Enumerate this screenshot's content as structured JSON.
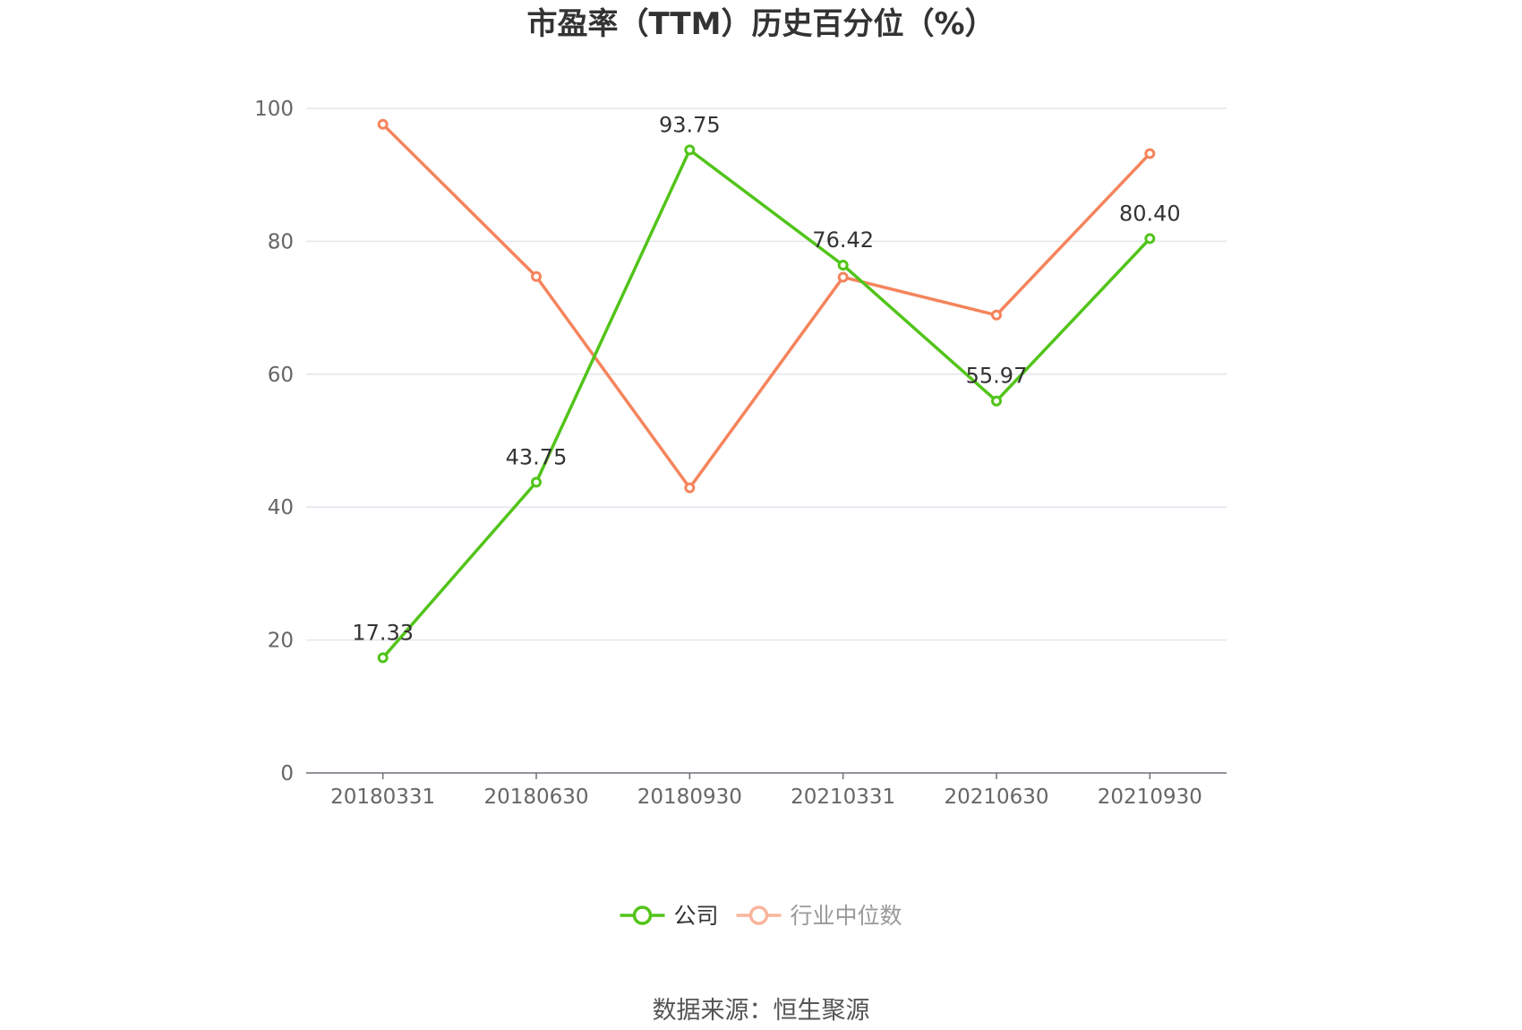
{
  "chart_data": {
    "type": "line",
    "title": "市盈率（TTM）历史百分位（%）",
    "categories": [
      "20180331",
      "20180630",
      "20180930",
      "20210331",
      "20210630",
      "20210930"
    ],
    "ylim": [
      0,
      100
    ],
    "yticks": [
      0,
      20,
      40,
      60,
      80,
      100
    ],
    "ytick_labels": [
      "0",
      "20",
      "40",
      "60",
      "80",
      "100"
    ],
    "grid": true,
    "legend_position": "bottom-center",
    "series": [
      {
        "name": "公司",
        "color": "#52c41a",
        "values": [
          17.33,
          43.75,
          93.75,
          76.42,
          55.97,
          80.4
        ],
        "labels": [
          "17.33",
          "43.75",
          "93.75",
          "76.42",
          "55.97",
          "80.40"
        ],
        "show_labels": true
      },
      {
        "name": "行业中位数",
        "color": "#f5845c",
        "legend_color": "#f9b59c",
        "legend_text_color": "#999999",
        "values": [
          97.6,
          74.7,
          42.9,
          74.6,
          68.9,
          93.2
        ],
        "show_labels": false
      }
    ],
    "source": "数据来源：恒生聚源"
  }
}
